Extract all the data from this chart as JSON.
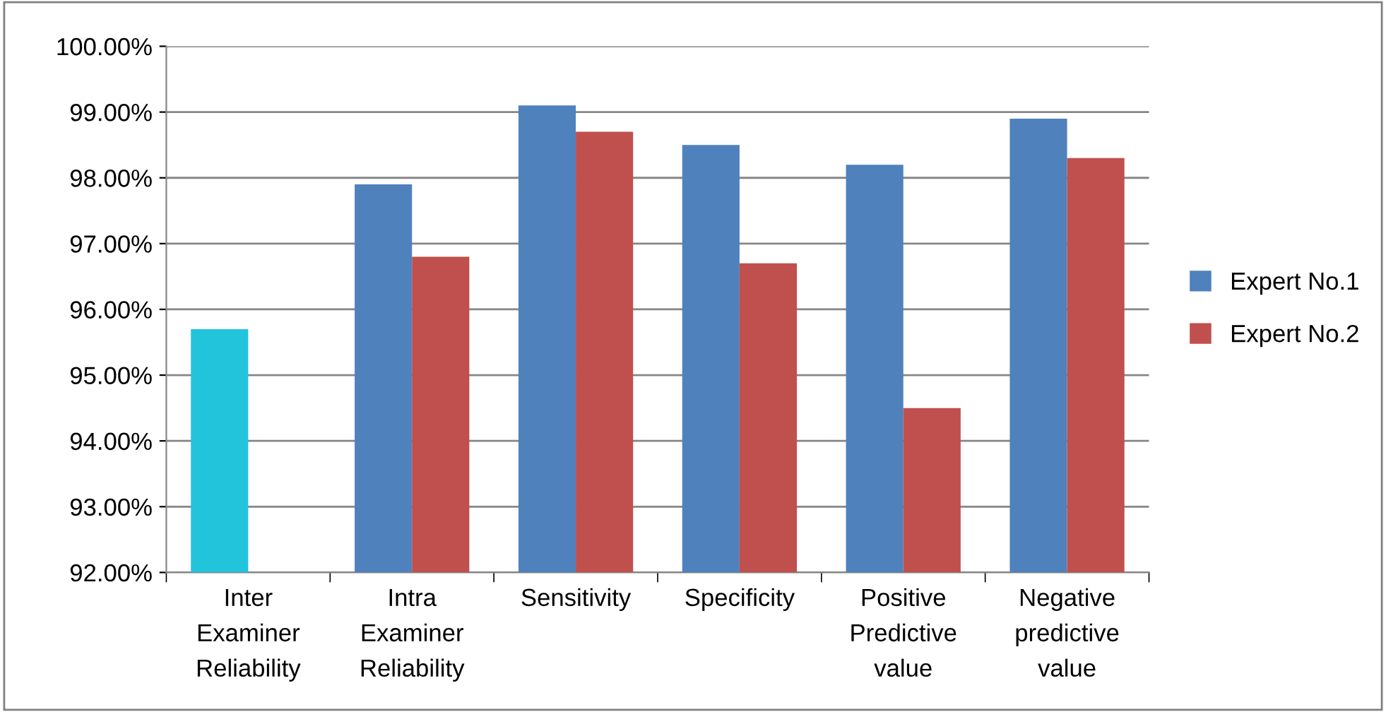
{
  "chart_data": {
    "type": "bar",
    "categories": [
      "Inter\nExaminer\nReliability",
      "Intra\nExaminer\nReliability",
      "Sensitivity",
      "Specificity",
      "Positive\nPredictive\nvalue",
      "Negative\npredictive\nvalue"
    ],
    "series": [
      {
        "name": "Expert No.1",
        "color": "#4f81bd",
        "colors": [
          "#22c4dc",
          "#4f81bd",
          "#4f81bd",
          "#4f81bd",
          "#4f81bd",
          "#4f81bd"
        ],
        "values": [
          95.7,
          97.9,
          99.1,
          98.5,
          98.2,
          98.9
        ]
      },
      {
        "name": "Expert No.2",
        "color": "#c0504d",
        "values": [
          null,
          96.8,
          98.7,
          96.7,
          94.5,
          98.3
        ]
      }
    ],
    "ylim": [
      92,
      100
    ],
    "yticks": [
      {
        "value": 92,
        "label": "92.00%"
      },
      {
        "value": 93,
        "label": "93.00%"
      },
      {
        "value": 94,
        "label": "94.00%"
      },
      {
        "value": 95,
        "label": "95.00%"
      },
      {
        "value": 96,
        "label": "96.00%"
      },
      {
        "value": 97,
        "label": "97.00%"
      },
      {
        "value": 98,
        "label": "98.00%"
      },
      {
        "value": 99,
        "label": "99.00%"
      },
      {
        "value": 100,
        "label": "100.00%"
      }
    ],
    "grid": "y",
    "legend": "right"
  }
}
